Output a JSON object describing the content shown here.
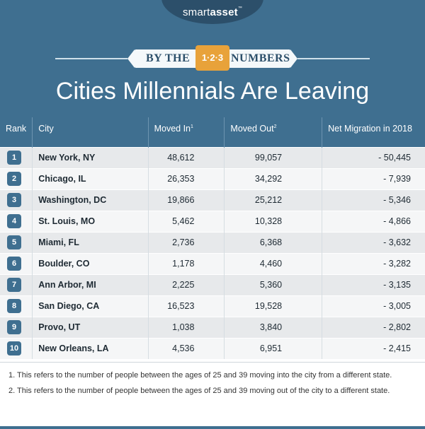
{
  "brand": {
    "name_light": "smart",
    "name_bold": "asset",
    "tm": "™"
  },
  "banner": {
    "left": "BY THE",
    "badge": "1·2·3",
    "right": "NUMBERS"
  },
  "title": "Cities Millennials Are Leaving",
  "table": {
    "headers": {
      "rank": "Rank",
      "city": "City",
      "moved_in": "Moved In",
      "moved_in_sup": "1",
      "moved_out": "Moved Out",
      "moved_out_sup": "2",
      "net": "Net Migration in 2018"
    },
    "rows": [
      {
        "rank": "1",
        "city": "New York, NY",
        "moved_in": "48,612",
        "moved_out": "99,057",
        "net": "- 50,445"
      },
      {
        "rank": "2",
        "city": "Chicago, IL",
        "moved_in": "26,353",
        "moved_out": "34,292",
        "net": "- 7,939"
      },
      {
        "rank": "3",
        "city": "Washington, DC",
        "moved_in": "19,866",
        "moved_out": "25,212",
        "net": "- 5,346"
      },
      {
        "rank": "4",
        "city": "St. Louis, MO",
        "moved_in": "5,462",
        "moved_out": "10,328",
        "net": "- 4,866"
      },
      {
        "rank": "5",
        "city": "Miami, FL",
        "moved_in": "2,736",
        "moved_out": "6,368",
        "net": "- 3,632"
      },
      {
        "rank": "6",
        "city": "Boulder, CO",
        "moved_in": "1,178",
        "moved_out": "4,460",
        "net": "- 3,282"
      },
      {
        "rank": "7",
        "city": "Ann Arbor, MI",
        "moved_in": "2,225",
        "moved_out": "5,360",
        "net": "- 3,135"
      },
      {
        "rank": "8",
        "city": "San Diego, CA",
        "moved_in": "16,523",
        "moved_out": "19,528",
        "net": "- 3,005"
      },
      {
        "rank": "9",
        "city": "Provo, UT",
        "moved_in": "1,038",
        "moved_out": "3,840",
        "net": "- 2,802"
      },
      {
        "rank": "10",
        "city": "New Orleans, LA",
        "moved_in": "4,536",
        "moved_out": "6,951",
        "net": "- 2,415"
      }
    ]
  },
  "footnotes": [
    {
      "num": "1.",
      "text": "This refers to the number of people between the ages of 25 and 39 moving into the city from a different state."
    },
    {
      "num": "2.",
      "text": "This refers to the number of people between the ages of 25 and 39 moving out of the city to a different state."
    }
  ],
  "colors": {
    "header_blue": "#3f6f90",
    "dark_blue": "#2c4f6a",
    "accent_orange": "#e8a23a"
  }
}
